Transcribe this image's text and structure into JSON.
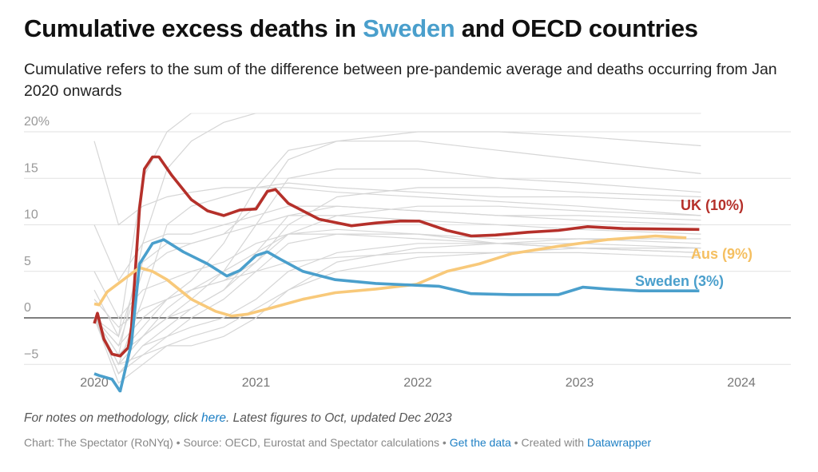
{
  "title": {
    "prefix": "Cumulative excess deaths in ",
    "highlight": "Sweden",
    "suffix": " and OECD countries"
  },
  "subtitle": "Cumulative refers to the sum of the difference between pre-pandemic average and deaths occurring from Jan 2020 onwards",
  "notes": {
    "prefix": "For notes on methodology, click ",
    "link": "here",
    "suffix": ". Latest figures to Oct, updated Dec 2023"
  },
  "source": {
    "prefix": "Chart: The Spectator (RoNYq) • Source: OECD, Eurostat and Spectator calculations • ",
    "data_link": "Get the data",
    "middle": " • Created with ",
    "dw_link": "Datawrapper"
  },
  "colors": {
    "uk": "#b5302a",
    "sweden": "#4a9fcc",
    "aus": "#f8c97a",
    "other": "#d6d6d6",
    "highlight": "#4a9fcc",
    "link": "#1d7fc4"
  },
  "chart_data": {
    "type": "line",
    "title": "Cumulative excess deaths in Sweden and OECD countries",
    "xlabel": "",
    "ylabel": "",
    "xlim": [
      2019.5,
      2024.3
    ],
    "ylim": [
      -8,
      22
    ],
    "grid": true,
    "yticks": [
      {
        "v": 20,
        "label": "20%"
      },
      {
        "v": 15,
        "label": "15"
      },
      {
        "v": 10,
        "label": "10"
      },
      {
        "v": 5,
        "label": "5"
      },
      {
        "v": 0,
        "label": "0"
      },
      {
        "v": -5,
        "label": "−5"
      }
    ],
    "xticks": [
      {
        "v": 2020,
        "label": "2020"
      },
      {
        "v": 2021,
        "label": "2021"
      },
      {
        "v": 2022,
        "label": "2022"
      },
      {
        "v": 2023,
        "label": "2023"
      },
      {
        "v": 2024,
        "label": "2024"
      }
    ],
    "highlighted": [
      {
        "key": "uk",
        "label": "UK (10%)",
        "points": [
          [
            2020.0,
            -0.6
          ],
          [
            2020.02,
            0.5
          ],
          [
            2020.06,
            -2.3
          ],
          [
            2020.11,
            -3.9
          ],
          [
            2020.16,
            -4.1
          ],
          [
            2020.21,
            -3.2
          ],
          [
            2020.23,
            -1
          ],
          [
            2020.28,
            11.8
          ],
          [
            2020.31,
            16
          ],
          [
            2020.36,
            17.3
          ],
          [
            2020.4,
            17.3
          ],
          [
            2020.48,
            15.3
          ],
          [
            2020.6,
            12.7
          ],
          [
            2020.7,
            11.5
          ],
          [
            2020.8,
            11
          ],
          [
            2020.9,
            11.6
          ],
          [
            2021.0,
            11.7
          ],
          [
            2021.07,
            13.6
          ],
          [
            2021.12,
            13.8
          ],
          [
            2021.2,
            12.3
          ],
          [
            2021.39,
            10.6
          ],
          [
            2021.59,
            9.9
          ],
          [
            2021.74,
            10.2
          ],
          [
            2021.89,
            10.4
          ],
          [
            2022.01,
            10.4
          ],
          [
            2022.18,
            9.4
          ],
          [
            2022.33,
            8.8
          ],
          [
            2022.48,
            8.9
          ],
          [
            2022.68,
            9.2
          ],
          [
            2022.87,
            9.4
          ],
          [
            2023.05,
            9.8
          ],
          [
            2023.27,
            9.6
          ],
          [
            2023.74,
            9.5
          ]
        ]
      },
      {
        "key": "aus",
        "label": "Aus (9%)",
        "points": [
          [
            2020.0,
            1.5
          ],
          [
            2020.03,
            1.4
          ],
          [
            2020.08,
            2.8
          ],
          [
            2020.18,
            4.1
          ],
          [
            2020.28,
            5.4
          ],
          [
            2020.36,
            5.0
          ],
          [
            2020.45,
            4.1
          ],
          [
            2020.6,
            2.0
          ],
          [
            2020.75,
            0.7
          ],
          [
            2020.85,
            0.2
          ],
          [
            2020.95,
            0.4
          ],
          [
            2021.1,
            1.1
          ],
          [
            2021.29,
            2.0
          ],
          [
            2021.49,
            2.7
          ],
          [
            2021.74,
            3.1
          ],
          [
            2021.99,
            3.6
          ],
          [
            2022.18,
            5.0
          ],
          [
            2022.38,
            5.8
          ],
          [
            2022.58,
            6.9
          ],
          [
            2022.87,
            7.7
          ],
          [
            2023.17,
            8.4
          ],
          [
            2023.47,
            8.8
          ],
          [
            2023.66,
            8.6
          ]
        ]
      },
      {
        "key": "sweden",
        "label": "Sweden (3%)",
        "points": [
          [
            2020.0,
            -6
          ],
          [
            2020.03,
            -6.2
          ],
          [
            2020.11,
            -6.6
          ],
          [
            2020.16,
            -7.9
          ],
          [
            2020.23,
            -2.7
          ],
          [
            2020.28,
            5.8
          ],
          [
            2020.36,
            8
          ],
          [
            2020.43,
            8.4
          ],
          [
            2020.55,
            7.1
          ],
          [
            2020.7,
            5.8
          ],
          [
            2020.82,
            4.5
          ],
          [
            2020.9,
            5.1
          ],
          [
            2021.0,
            6.7
          ],
          [
            2021.07,
            7.1
          ],
          [
            2021.15,
            6.3
          ],
          [
            2021.29,
            5.0
          ],
          [
            2021.49,
            4.1
          ],
          [
            2021.74,
            3.7
          ],
          [
            2021.99,
            3.5
          ],
          [
            2022.13,
            3.4
          ],
          [
            2022.33,
            2.6
          ],
          [
            2022.58,
            2.5
          ],
          [
            2022.87,
            2.5
          ],
          [
            2023.02,
            3.3
          ],
          [
            2023.17,
            3.1
          ],
          [
            2023.37,
            2.9
          ],
          [
            2023.74,
            2.9
          ]
        ]
      }
    ],
    "other_x": [
      2020.0,
      2020.15,
      2020.3,
      2020.45,
      2020.6,
      2020.8,
      2021.0,
      2021.2,
      2021.5,
      2022.0,
      2022.5,
      2023.0,
      2023.75
    ],
    "other_series": [
      [
        19,
        10,
        12,
        13,
        13.5,
        14,
        14,
        14.5,
        14,
        13.5,
        13,
        13,
        12.5
      ],
      [
        0,
        -3,
        5,
        7,
        8,
        9,
        12,
        17,
        19,
        20,
        20,
        19.5,
        18.5
      ],
      [
        0,
        -4,
        -1,
        2,
        4,
        8,
        14,
        18,
        19,
        19,
        18,
        17,
        15.5
      ],
      [
        0,
        -5,
        -2,
        0,
        2,
        5,
        10,
        15,
        16,
        16,
        15,
        14.5,
        13.5
      ],
      [
        3,
        -2,
        6,
        8,
        8,
        9,
        10,
        11,
        11,
        10.5,
        10,
        9.5,
        9
      ],
      [
        0,
        -6,
        -3,
        -1,
        1,
        3,
        7,
        11,
        12,
        11.5,
        11,
        10.5,
        10
      ],
      [
        0,
        -5,
        -4,
        -2,
        0,
        2,
        5,
        8,
        9,
        9,
        8.5,
        8.5,
        8
      ],
      [
        10,
        4,
        8,
        9,
        9,
        10,
        11,
        12,
        12,
        11.5,
        11,
        11,
        10.5
      ],
      [
        0,
        -4,
        -2,
        1,
        3,
        5,
        7,
        9,
        9.5,
        9,
        8,
        7.5,
        7
      ],
      [
        0,
        -6,
        -3,
        -2,
        -1,
        0,
        2,
        5,
        7,
        8,
        8,
        7.5,
        7
      ],
      [
        0,
        -7,
        -5,
        -3,
        -2,
        -1,
        1,
        3,
        5,
        6.5,
        7,
        7,
        6.5
      ],
      [
        5,
        0,
        3,
        4,
        5,
        6,
        8,
        9,
        9,
        8.5,
        8,
        8,
        7.5
      ],
      [
        0,
        -3,
        0,
        2,
        3,
        4,
        5,
        6,
        6.5,
        7,
        7,
        7.5,
        7.5
      ],
      [
        0,
        -5,
        2,
        10,
        12,
        13,
        14,
        14,
        13.5,
        13,
        12.5,
        12,
        11
      ],
      [
        0,
        -4,
        8,
        16,
        19,
        21,
        22,
        22,
        22,
        22,
        22,
        22,
        22
      ],
      [
        0,
        -2,
        15,
        20,
        22,
        22,
        22,
        22,
        22,
        22,
        22,
        22,
        22
      ],
      [
        0,
        -6,
        -4,
        -3,
        -3,
        -2,
        0,
        3,
        6,
        7.5,
        8,
        8.5,
        8.5
      ],
      [
        2,
        -1,
        1,
        2,
        3,
        4,
        6,
        9,
        11,
        12,
        12,
        11.5,
        11
      ],
      [
        0,
        -5,
        -2,
        0,
        1,
        3,
        6,
        10,
        13,
        14,
        14,
        13.5,
        13
      ]
    ]
  }
}
